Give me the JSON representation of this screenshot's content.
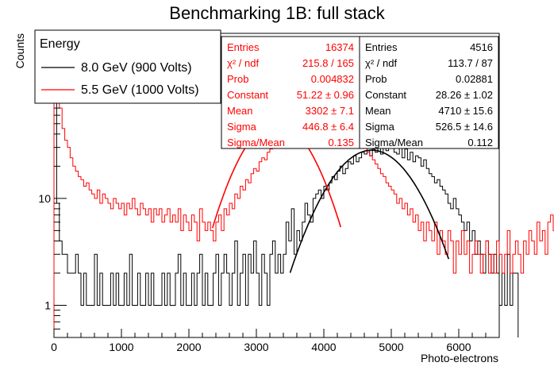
{
  "chart_data": {
    "type": "histogram",
    "title": "Benchmarking 1B: full stack",
    "xlabel": "Photo-electrons",
    "ylabel": "Counts",
    "xlim": [
      0,
      6600
    ],
    "ylim": [
      0.5,
      350
    ],
    "log_y": true,
    "x_ticks": [
      0,
      1000,
      2000,
      3000,
      4000,
      5000,
      6000
    ],
    "x_tick_labels": [
      "0",
      "1000",
      "2000",
      "3000",
      "4000",
      "5000",
      "6000"
    ],
    "y_ticks": [
      1,
      10,
      100
    ],
    "y_tick_labels": [
      "1",
      "10",
      "10²"
    ],
    "bin_width": 40,
    "legend": {
      "title": "Energy",
      "position": "top-left",
      "entries": [
        {
          "label": "8.0 GeV (900 Volts)",
          "color": "#000000"
        },
        {
          "label": "5.5 GeV (1000 Volts)",
          "color": "#ff0000"
        }
      ]
    },
    "series": [
      {
        "name": "8.0 GeV (900 Volts)",
        "color": "#000000",
        "stats": [
          [
            "Entries",
            "4516"
          ],
          [
            "χ² / ndf",
            "113.7 / 87"
          ],
          [
            "Prob",
            "0.02881"
          ],
          [
            "Constant",
            "28.26 ± 1.02"
          ],
          [
            "Mean",
            "4710 ± 15.6"
          ],
          [
            "Sigma",
            "526.5 ± 14.6"
          ],
          [
            "Sigma/Mean",
            "0.112"
          ]
        ],
        "fit": {
          "constant": 28.26,
          "mean": 4710,
          "sigma": 526.5,
          "range": [
            3500,
            5850
          ]
        },
        "counts": [
          200,
          9,
          4,
          3,
          3,
          2,
          2,
          2,
          3,
          2,
          1,
          2,
          1,
          1,
          1,
          3,
          1,
          2,
          1,
          1,
          1,
          2,
          1,
          2,
          1,
          1,
          2,
          1,
          3,
          1,
          1,
          2,
          1,
          1,
          2,
          1,
          2,
          1,
          1,
          1,
          2,
          1,
          2,
          1,
          1,
          2,
          3,
          1,
          2,
          1,
          1,
          2,
          1,
          2,
          3,
          1,
          2,
          1,
          1,
          2,
          3,
          1,
          2,
          3,
          2,
          1,
          2,
          4,
          1,
          2,
          3,
          1,
          3,
          2,
          4,
          2,
          1,
          3,
          2,
          1,
          3,
          4,
          2,
          3,
          2,
          3,
          6,
          4,
          8,
          3,
          5,
          4,
          6,
          9,
          7,
          6,
          10,
          11,
          12,
          10,
          13,
          12,
          14,
          16,
          15,
          18,
          20,
          17,
          19,
          22,
          21,
          25,
          22,
          24,
          27,
          26,
          28,
          25,
          29,
          27,
          31,
          26,
          30,
          28,
          33,
          35,
          27,
          26,
          31,
          24,
          29,
          23,
          27,
          22,
          25,
          24,
          20,
          23,
          19,
          17,
          16,
          14,
          15,
          13,
          12,
          11,
          9,
          8,
          10,
          8,
          7,
          6,
          5,
          6,
          4,
          5,
          3,
          4,
          3,
          2,
          4,
          3,
          2,
          3,
          2,
          1,
          2,
          1,
          3,
          1,
          2,
          2
        ]
      },
      {
        "name": "5.5 GeV (1000 Volts)",
        "color": "#ff0000",
        "stats": [
          [
            "Entries",
            "16374"
          ],
          [
            "χ² / ndf",
            "215.8 / 165"
          ],
          [
            "Prob",
            "0.004832"
          ],
          [
            "Constant",
            "51.22 ± 0.96"
          ],
          [
            "Mean",
            "3302 ± 7.1"
          ],
          [
            "Sigma",
            "446.8 ± 6.4"
          ],
          [
            "Sigma/Mean",
            "0.135"
          ]
        ],
        "fit": {
          "constant": 51.22,
          "mean": 3302,
          "sigma": 446.8,
          "range": [
            2350,
            4250
          ]
        },
        "counts": [
          300,
          130,
          70,
          45,
          35,
          30,
          24,
          20,
          18,
          16,
          15,
          13,
          14,
          12,
          11,
          10,
          12,
          9,
          11,
          10,
          9,
          8,
          10,
          9,
          8,
          9,
          7,
          9,
          8,
          10,
          8,
          7,
          9,
          8,
          7,
          8,
          6,
          8,
          7,
          8,
          6,
          7,
          8,
          6,
          7,
          6,
          8,
          5,
          7,
          6,
          5,
          7,
          6,
          4,
          8,
          6,
          5,
          6,
          5,
          4,
          6,
          7,
          5,
          8,
          7,
          9,
          8,
          11,
          10,
          13,
          12,
          15,
          14,
          17,
          19,
          18,
          22,
          24,
          23,
          27,
          29,
          31,
          33,
          34,
          38,
          37,
          42,
          40,
          45,
          44,
          48,
          46,
          52,
          49,
          55,
          50,
          54,
          47,
          56,
          51,
          53,
          48,
          52,
          50,
          46,
          49,
          44,
          47,
          42,
          40,
          38,
          41,
          35,
          33,
          31,
          30,
          27,
          25,
          23,
          21,
          19,
          17,
          16,
          14,
          13,
          12,
          11,
          9,
          10,
          8,
          9,
          7,
          8,
          6,
          7,
          5,
          6,
          4,
          6,
          5,
          4,
          6,
          3,
          5,
          4,
          3,
          5,
          4,
          2,
          4,
          3,
          5,
          3,
          4,
          2,
          3,
          4,
          3,
          2,
          3,
          4,
          2,
          3,
          2,
          4,
          3,
          2,
          3,
          5,
          2,
          3,
          4,
          3,
          2,
          4,
          3,
          5,
          4,
          3,
          6,
          4,
          5,
          3,
          6,
          7,
          5,
          4,
          6
        ]
      }
    ]
  }
}
